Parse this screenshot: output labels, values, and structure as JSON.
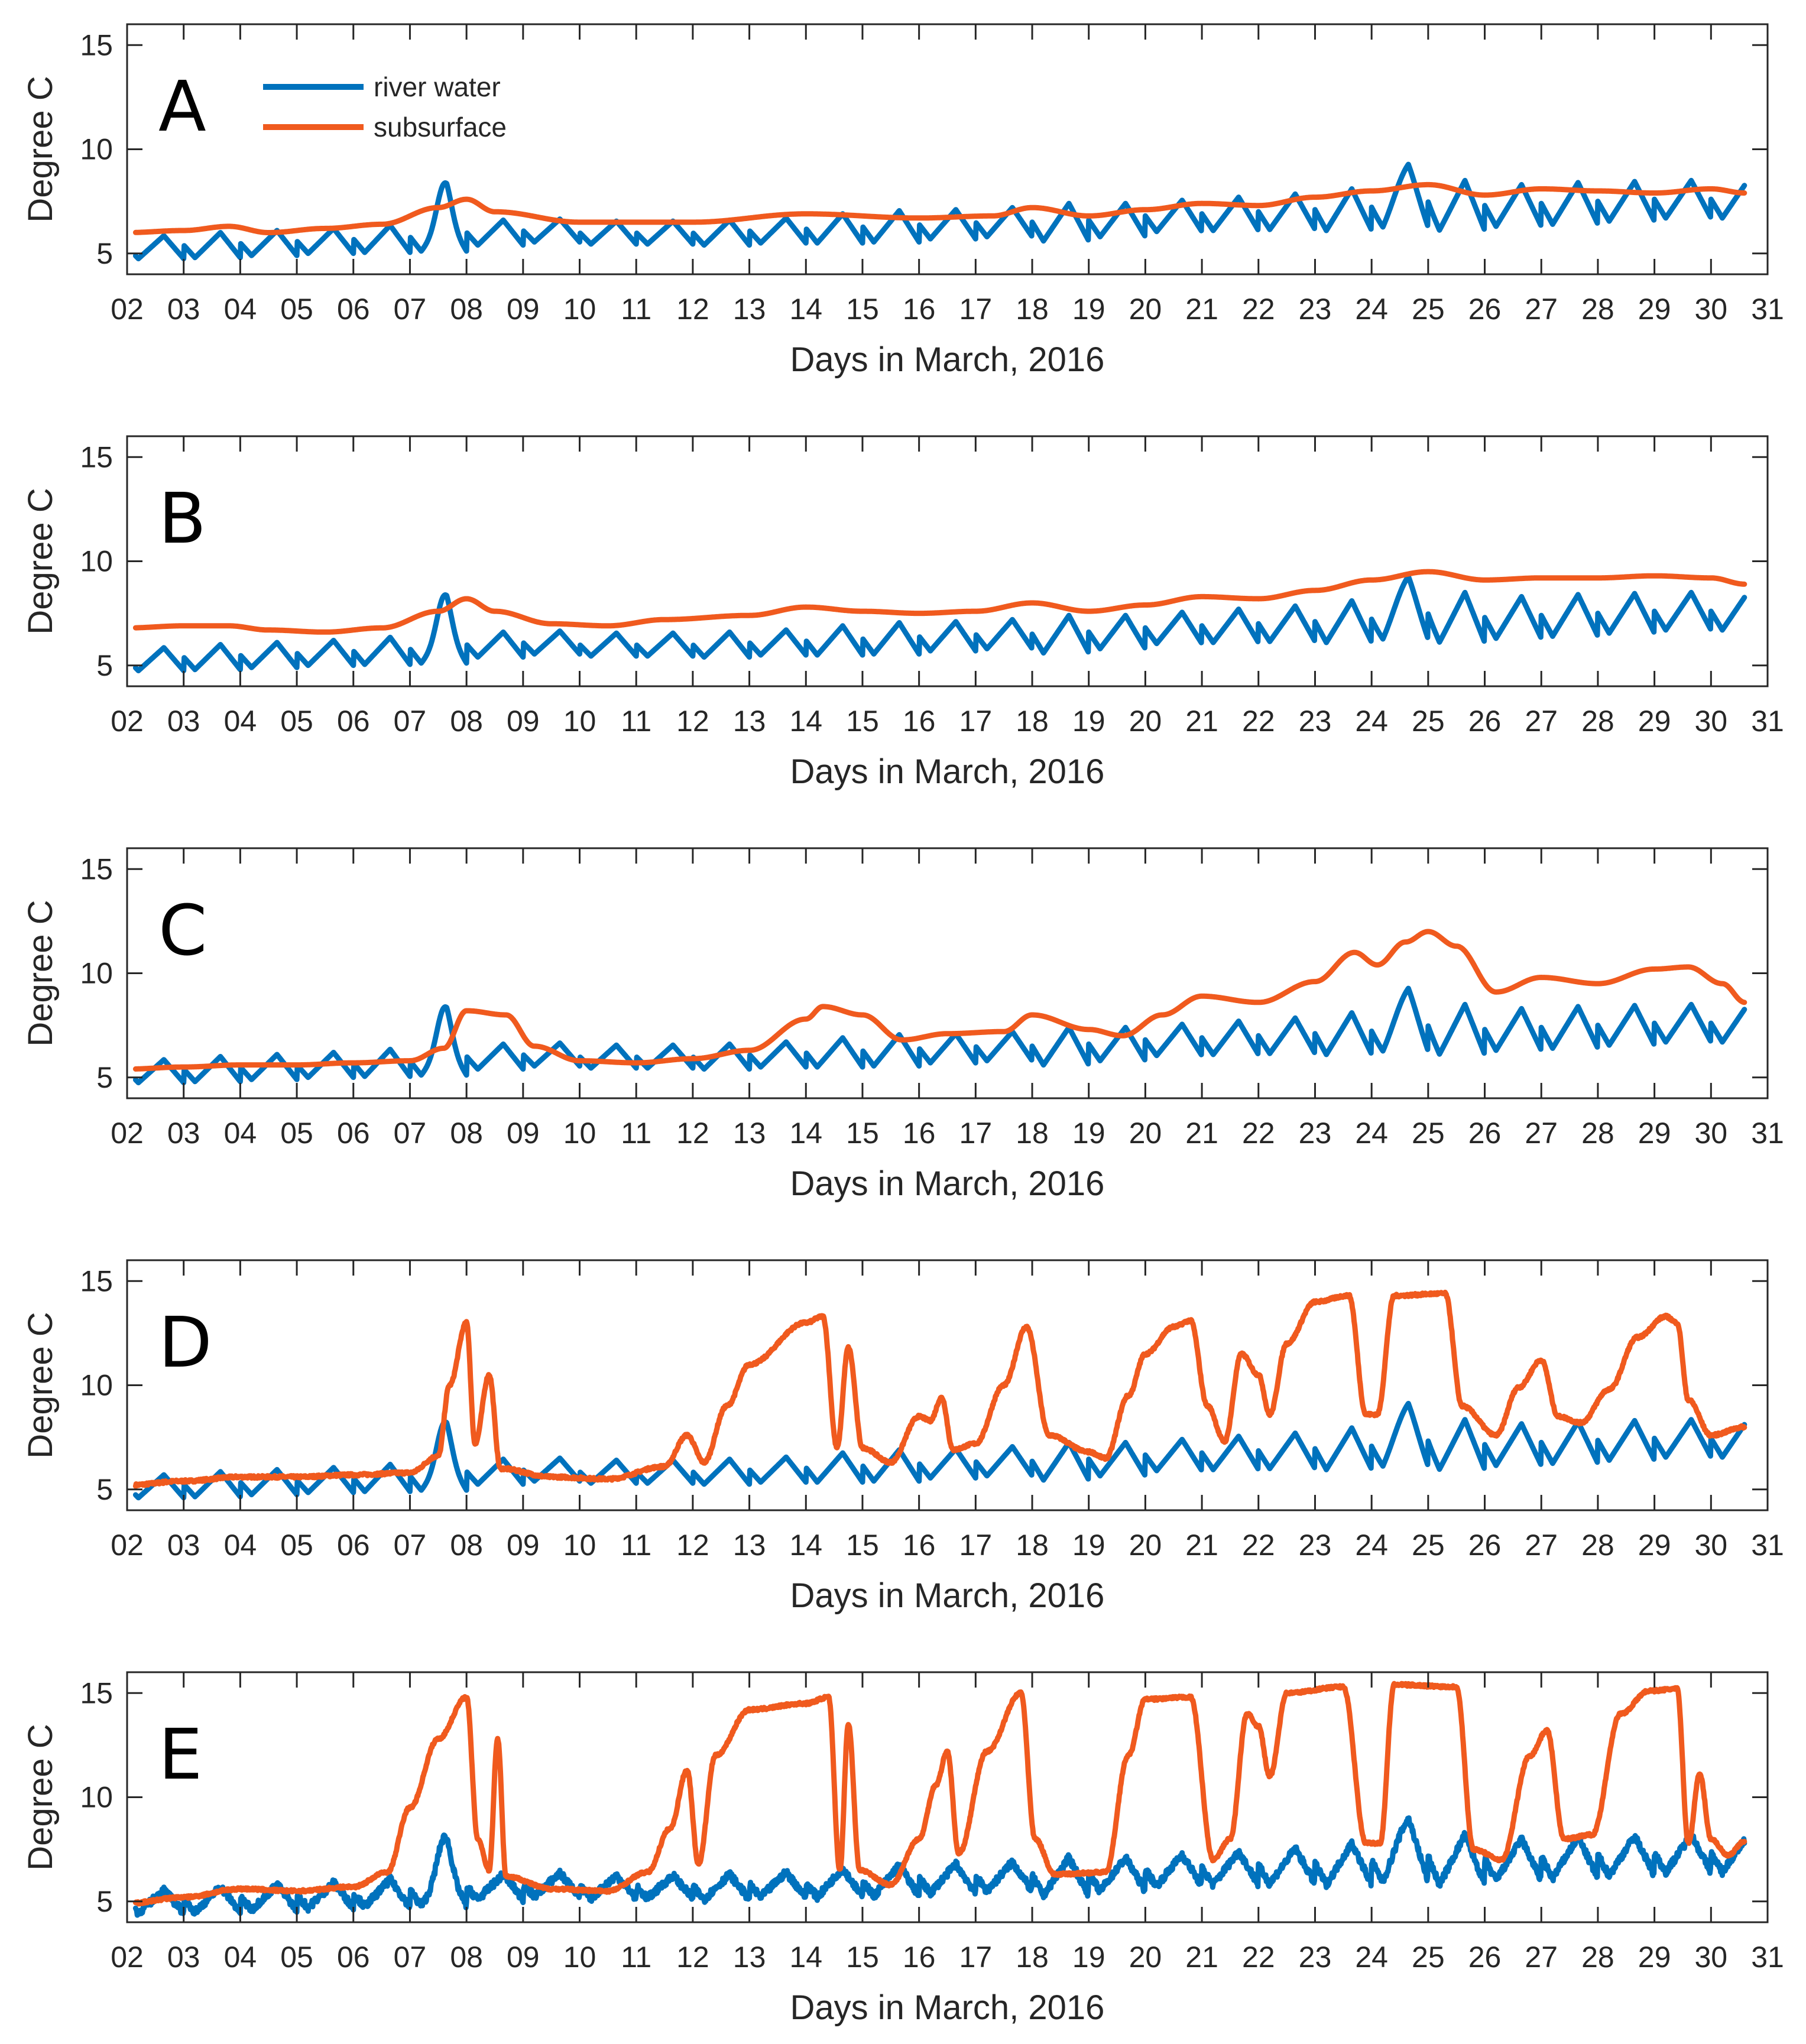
{
  "chart_data": {
    "type": "line",
    "panels": [
      "A",
      "B",
      "C",
      "D",
      "E"
    ],
    "xlabel": "Days in March, 2016",
    "ylabel": "Degree C",
    "xlim": [
      2,
      31
    ],
    "ylim": [
      4,
      16
    ],
    "x_ticks": [
      "02",
      "03",
      "04",
      "05",
      "06",
      "07",
      "08",
      "09",
      "10",
      "11",
      "12",
      "13",
      "14",
      "15",
      "16",
      "17",
      "18",
      "19",
      "20",
      "21",
      "22",
      "23",
      "24",
      "25",
      "26",
      "27",
      "28",
      "29",
      "30",
      "31"
    ],
    "y_ticks": [
      "5",
      "10",
      "15"
    ],
    "legend": [
      {
        "name": "river water",
        "color": "#0072BD"
      },
      {
        "name": "subsurface",
        "color": "#F05A1E"
      }
    ],
    "river_water": {
      "base": [
        5.3,
        5.4,
        5.5,
        5.6,
        5.7,
        5.8,
        6.0,
        6.1,
        6.0,
        6.0,
        6.0,
        6.1,
        6.2,
        6.3,
        6.4,
        6.5,
        6.5,
        6.6,
        6.8,
        6.9,
        7.0,
        7.1,
        7.2,
        7.3,
        7.3,
        7.4,
        7.5,
        7.6,
        7.6,
        7.7
      ],
      "amp": [
        0.55,
        0.6,
        0.6,
        0.6,
        0.65,
        0.7,
        0.6,
        0.55,
        0.55,
        0.55,
        0.6,
        0.6,
        0.7,
        0.75,
        0.7,
        0.7,
        0.9,
        0.8,
        0.75,
        0.8,
        0.85,
        1.0,
        1.1,
        1.2,
        1.0,
        1.0,
        0.95,
        0.9,
        0.9,
        0.9
      ],
      "extra": [
        [
          7.6,
          2.0,
          0.18
        ],
        [
          24.6,
          1.0,
          0.3
        ]
      ]
    },
    "subsurface": {
      "A": [
        [
          2.0,
          6.0
        ],
        [
          3.0,
          6.1
        ],
        [
          3.8,
          6.3
        ],
        [
          4.5,
          6.0
        ],
        [
          5.5,
          6.2
        ],
        [
          6.5,
          6.4
        ],
        [
          7.5,
          7.2
        ],
        [
          8.0,
          7.6
        ],
        [
          8.5,
          7.0
        ],
        [
          10.0,
          6.5
        ],
        [
          12.0,
          6.5
        ],
        [
          14.0,
          6.9
        ],
        [
          16.0,
          6.7
        ],
        [
          17.3,
          6.8
        ],
        [
          18.0,
          7.2
        ],
        [
          19.0,
          6.8
        ],
        [
          20.0,
          7.1
        ],
        [
          21.0,
          7.4
        ],
        [
          22.0,
          7.3
        ],
        [
          23.0,
          7.7
        ],
        [
          24.0,
          8.0
        ],
        [
          25.0,
          8.3
        ],
        [
          26.0,
          7.8
        ],
        [
          27.0,
          8.1
        ],
        [
          28.0,
          8.0
        ],
        [
          29.0,
          7.9
        ],
        [
          30.0,
          8.1
        ],
        [
          30.6,
          7.9
        ]
      ],
      "B": [
        [
          2.0,
          6.8
        ],
        [
          3.0,
          6.9
        ],
        [
          3.8,
          6.9
        ],
        [
          4.5,
          6.7
        ],
        [
          5.5,
          6.6
        ],
        [
          6.5,
          6.8
        ],
        [
          7.5,
          7.6
        ],
        [
          8.0,
          8.2
        ],
        [
          8.5,
          7.6
        ],
        [
          9.5,
          7.0
        ],
        [
          10.5,
          6.9
        ],
        [
          11.5,
          7.2
        ],
        [
          13.0,
          7.4
        ],
        [
          14.0,
          7.8
        ],
        [
          15.0,
          7.6
        ],
        [
          16.0,
          7.5
        ],
        [
          17.0,
          7.6
        ],
        [
          18.0,
          8.0
        ],
        [
          19.0,
          7.6
        ],
        [
          20.0,
          7.9
        ],
        [
          21.0,
          8.3
        ],
        [
          22.0,
          8.2
        ],
        [
          23.0,
          8.6
        ],
        [
          24.0,
          9.1
        ],
        [
          25.0,
          9.5
        ],
        [
          26.0,
          9.1
        ],
        [
          27.0,
          9.2
        ],
        [
          28.0,
          9.2
        ],
        [
          29.0,
          9.3
        ],
        [
          30.0,
          9.2
        ],
        [
          30.6,
          8.9
        ]
      ],
      "C": [
        [
          2.0,
          5.4
        ],
        [
          3.0,
          5.5
        ],
        [
          4.0,
          5.6
        ],
        [
          5.0,
          5.6
        ],
        [
          6.0,
          5.7
        ],
        [
          7.0,
          5.8
        ],
        [
          7.6,
          6.4
        ],
        [
          8.0,
          8.2
        ],
        [
          8.7,
          8.0
        ],
        [
          9.2,
          6.5
        ],
        [
          10.0,
          5.8
        ],
        [
          11.0,
          5.7
        ],
        [
          12.0,
          5.9
        ],
        [
          13.0,
          6.3
        ],
        [
          14.0,
          7.8
        ],
        [
          14.3,
          8.4
        ],
        [
          15.0,
          8.0
        ],
        [
          15.7,
          6.8
        ],
        [
          16.5,
          7.1
        ],
        [
          17.5,
          7.2
        ],
        [
          18.0,
          8.0
        ],
        [
          19.0,
          7.3
        ],
        [
          19.6,
          7.0
        ],
        [
          20.3,
          8.0
        ],
        [
          21.0,
          8.9
        ],
        [
          22.0,
          8.6
        ],
        [
          23.0,
          9.6
        ],
        [
          23.7,
          11.0
        ],
        [
          24.1,
          10.4
        ],
        [
          24.6,
          11.5
        ],
        [
          25.0,
          12.0
        ],
        [
          25.5,
          11.3
        ],
        [
          26.2,
          9.1
        ],
        [
          27.0,
          9.8
        ],
        [
          28.0,
          9.5
        ],
        [
          29.0,
          10.2
        ],
        [
          29.6,
          10.3
        ],
        [
          30.2,
          9.5
        ],
        [
          30.6,
          8.6
        ]
      ],
      "D": [
        [
          2.0,
          5.2
        ],
        [
          3.0,
          5.4
        ],
        [
          4.0,
          5.6
        ],
        [
          5.0,
          5.6
        ],
        [
          6.0,
          5.7
        ],
        [
          7.0,
          5.8
        ],
        [
          7.5,
          6.6
        ],
        [
          7.7,
          10.0
        ],
        [
          8.0,
          13.0
        ],
        [
          8.15,
          7.2
        ],
        [
          8.4,
          10.5
        ],
        [
          8.6,
          6.0
        ],
        [
          9.5,
          5.6
        ],
        [
          10.5,
          5.5
        ],
        [
          11.5,
          6.1
        ],
        [
          11.9,
          7.6
        ],
        [
          12.2,
          6.3
        ],
        [
          12.6,
          9.0
        ],
        [
          13.0,
          11.0
        ],
        [
          14.0,
          13.0
        ],
        [
          14.3,
          13.3
        ],
        [
          14.55,
          7.0
        ],
        [
          14.75,
          11.8
        ],
        [
          15.0,
          7.0
        ],
        [
          15.5,
          6.3
        ],
        [
          16.0,
          8.5
        ],
        [
          16.2,
          8.3
        ],
        [
          16.4,
          9.4
        ],
        [
          16.6,
          6.9
        ],
        [
          17.0,
          7.2
        ],
        [
          17.5,
          10.0
        ],
        [
          17.9,
          12.8
        ],
        [
          18.3,
          7.6
        ],
        [
          19.0,
          6.8
        ],
        [
          19.3,
          6.5
        ],
        [
          19.7,
          9.5
        ],
        [
          20.0,
          11.5
        ],
        [
          20.5,
          12.8
        ],
        [
          20.8,
          13.1
        ],
        [
          21.1,
          9.0
        ],
        [
          21.4,
          7.3
        ],
        [
          21.7,
          11.5
        ],
        [
          22.0,
          10.5
        ],
        [
          22.2,
          8.6
        ],
        [
          22.5,
          12.0
        ],
        [
          23.0,
          14.0
        ],
        [
          23.6,
          14.3
        ],
        [
          23.9,
          8.6
        ],
        [
          24.1,
          8.6
        ],
        [
          24.4,
          14.3
        ],
        [
          25.3,
          14.4
        ],
        [
          25.6,
          9.0
        ],
        [
          26.2,
          7.6
        ],
        [
          26.6,
          9.9
        ],
        [
          27.0,
          11.2
        ],
        [
          27.3,
          8.5
        ],
        [
          27.7,
          8.2
        ],
        [
          28.2,
          9.8
        ],
        [
          28.7,
          12.3
        ],
        [
          29.2,
          13.3
        ],
        [
          29.4,
          13.0
        ],
        [
          29.6,
          9.3
        ],
        [
          30.0,
          7.6
        ],
        [
          30.6,
          8.0
        ]
      ],
      "E": [
        [
          2.0,
          4.9
        ],
        [
          3.0,
          5.2
        ],
        [
          4.0,
          5.6
        ],
        [
          5.0,
          5.5
        ],
        [
          6.0,
          5.7
        ],
        [
          6.6,
          6.4
        ],
        [
          7.0,
          9.5
        ],
        [
          7.5,
          12.8
        ],
        [
          8.0,
          14.8
        ],
        [
          8.2,
          8.0
        ],
        [
          8.4,
          6.5
        ],
        [
          8.55,
          12.8
        ],
        [
          8.7,
          6.2
        ],
        [
          9.5,
          5.6
        ],
        [
          10.5,
          5.5
        ],
        [
          11.2,
          6.4
        ],
        [
          11.6,
          8.5
        ],
        [
          11.9,
          11.3
        ],
        [
          12.1,
          6.8
        ],
        [
          12.4,
          12.0
        ],
        [
          13.0,
          14.2
        ],
        [
          14.0,
          14.5
        ],
        [
          14.4,
          14.8
        ],
        [
          14.6,
          6.5
        ],
        [
          14.75,
          13.5
        ],
        [
          14.95,
          6.5
        ],
        [
          15.5,
          5.8
        ],
        [
          16.0,
          8.0
        ],
        [
          16.3,
          10.6
        ],
        [
          16.5,
          12.2
        ],
        [
          16.7,
          7.3
        ],
        [
          17.2,
          12.2
        ],
        [
          17.8,
          15.0
        ],
        [
          18.05,
          8.0
        ],
        [
          18.4,
          6.3
        ],
        [
          19.3,
          6.4
        ],
        [
          19.7,
          12.0
        ],
        [
          20.0,
          14.7
        ],
        [
          20.8,
          14.8
        ],
        [
          21.2,
          7.0
        ],
        [
          21.5,
          8.0
        ],
        [
          21.8,
          14.0
        ],
        [
          22.0,
          13.4
        ],
        [
          22.2,
          11.0
        ],
        [
          22.5,
          15.0
        ],
        [
          23.5,
          15.3
        ],
        [
          23.9,
          7.8
        ],
        [
          24.15,
          7.8
        ],
        [
          24.4,
          15.4
        ],
        [
          25.5,
          15.3
        ],
        [
          25.8,
          7.5
        ],
        [
          26.3,
          7.0
        ],
        [
          26.8,
          12.0
        ],
        [
          27.1,
          13.2
        ],
        [
          27.4,
          8.0
        ],
        [
          27.9,
          8.2
        ],
        [
          28.4,
          14.0
        ],
        [
          28.9,
          15.1
        ],
        [
          29.4,
          15.2
        ],
        [
          29.6,
          7.8
        ],
        [
          29.8,
          11.1
        ],
        [
          30.0,
          8.0
        ],
        [
          30.3,
          7.2
        ],
        [
          30.6,
          7.9
        ]
      ]
    }
  }
}
